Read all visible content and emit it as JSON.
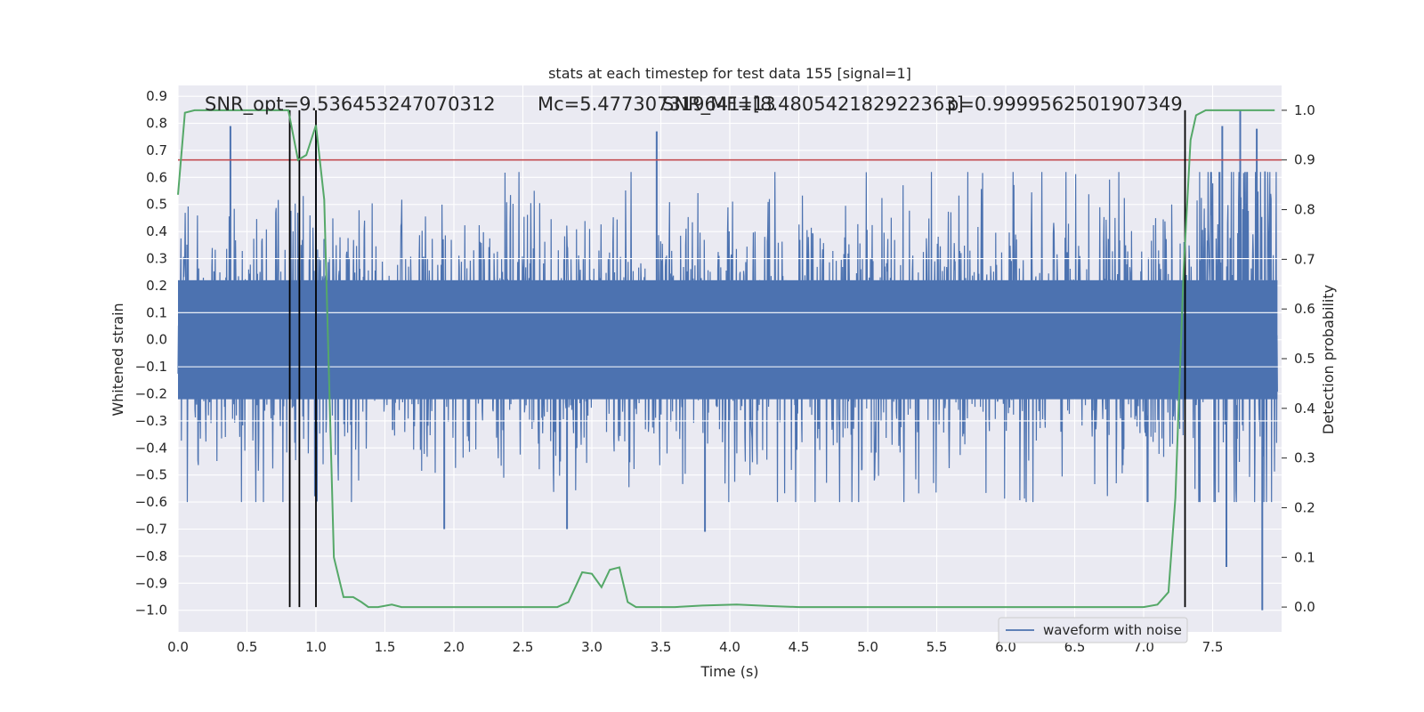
{
  "chart_data": {
    "type": "line",
    "title": "stats at each timestep for test data 155 [signal=1]",
    "xlabel": "Time (s)",
    "ylabel_left": "Whitened strain",
    "ylabel_right": "Detection probability",
    "xlim": [
      0.0,
      8.0
    ],
    "ylim_left": [
      -1.08,
      0.94
    ],
    "ylim_right": [
      -0.05,
      1.05
    ],
    "x_ticks": [
      "0.0",
      "0.5",
      "1.0",
      "1.5",
      "2.0",
      "2.5",
      "3.0",
      "3.5",
      "4.0",
      "4.5",
      "5.0",
      "5.5",
      "6.0",
      "6.5",
      "7.0",
      "7.5"
    ],
    "x_tick_values": [
      0.0,
      0.5,
      1.0,
      1.5,
      2.0,
      2.5,
      3.0,
      3.5,
      4.0,
      4.5,
      5.0,
      5.5,
      6.0,
      6.5,
      7.0,
      7.5
    ],
    "y_left_ticks": [
      "0.9",
      "0.8",
      "0.7",
      "0.6",
      "0.5",
      "0.4",
      "0.3",
      "0.2",
      "0.1",
      "0.0",
      "−0.1",
      "−0.2",
      "−0.3",
      "−0.4",
      "−0.5",
      "−0.6",
      "−0.7",
      "−0.8",
      "−0.9",
      "−1.0"
    ],
    "y_left_tick_values": [
      0.9,
      0.8,
      0.7,
      0.6,
      0.5,
      0.4,
      0.3,
      0.2,
      0.1,
      0.0,
      -0.1,
      -0.2,
      -0.3,
      -0.4,
      -0.5,
      -0.6,
      -0.7,
      -0.8,
      -0.9,
      -1.0
    ],
    "y_right_ticks": [
      "1.0",
      "0.9",
      "0.8",
      "0.7",
      "0.6",
      "0.5",
      "0.4",
      "0.3",
      "0.2",
      "0.1",
      "0.0"
    ],
    "y_right_tick_values": [
      1.0,
      0.9,
      0.8,
      0.7,
      0.6,
      0.5,
      0.4,
      0.3,
      0.2,
      0.1,
      0.0
    ],
    "annotations": [
      {
        "text": "SNR_opt=9.536453247070312"
      },
      {
        "text": "Mᴄ=5.477307319641113"
      },
      {
        "text": "SNR_MF=[8.480542182922363]"
      },
      {
        "text": "p=0.9999562501907349"
      }
    ],
    "threshold": {
      "value": 0.9,
      "color": "#c44e52"
    },
    "vertical_lines": [
      0.81,
      0.88,
      1.0,
      7.3
    ],
    "legend": {
      "position": "lower-right",
      "entries": [
        "waveform with noise"
      ]
    },
    "grid": true,
    "series": [
      {
        "name": "waveform with noise",
        "axis": "left",
        "color": "#4c72b0",
        "typical_amplitude": 0.25,
        "peaks": [
          {
            "x": 0.38,
            "y": 0.79
          },
          {
            "x": 1.0,
            "y": 0.78
          },
          {
            "x": 3.47,
            "y": 0.77
          },
          {
            "x": 3.82,
            "y": -0.71
          },
          {
            "x": 1.93,
            "y": -0.7
          },
          {
            "x": 2.82,
            "y": -0.7
          },
          {
            "x": 7.7,
            "y": 0.85
          },
          {
            "x": 7.57,
            "y": 0.79
          },
          {
            "x": 7.82,
            "y": 0.78
          },
          {
            "x": 7.6,
            "y": -0.84
          },
          {
            "x": 7.86,
            "y": -1.0
          }
        ]
      },
      {
        "axis": "right",
        "color": "#55a868",
        "points": [
          [
            0.0,
            0.83
          ],
          [
            0.05,
            0.995
          ],
          [
            0.12,
            1.0
          ],
          [
            0.4,
            1.0
          ],
          [
            0.8,
            1.0
          ],
          [
            0.87,
            0.9
          ],
          [
            0.93,
            0.91
          ],
          [
            1.0,
            0.97
          ],
          [
            1.06,
            0.82
          ],
          [
            1.13,
            0.1
          ],
          [
            1.2,
            0.02
          ],
          [
            1.27,
            0.02
          ],
          [
            1.33,
            0.01
          ],
          [
            1.38,
            0.0
          ],
          [
            1.45,
            0.0
          ],
          [
            1.55,
            0.005
          ],
          [
            1.62,
            0.0
          ],
          [
            2.0,
            0.0
          ],
          [
            2.5,
            0.0
          ],
          [
            2.75,
            0.0
          ],
          [
            2.83,
            0.01
          ],
          [
            2.93,
            0.07
          ],
          [
            3.0,
            0.067
          ],
          [
            3.07,
            0.04
          ],
          [
            3.13,
            0.075
          ],
          [
            3.2,
            0.08
          ],
          [
            3.26,
            0.01
          ],
          [
            3.32,
            0.0
          ],
          [
            3.6,
            0.0
          ],
          [
            3.8,
            0.003
          ],
          [
            4.05,
            0.005
          ],
          [
            4.3,
            0.002
          ],
          [
            4.5,
            0.0
          ],
          [
            5.0,
            0.0
          ],
          [
            6.0,
            0.0
          ],
          [
            6.5,
            0.0
          ],
          [
            7.0,
            0.0
          ],
          [
            7.1,
            0.005
          ],
          [
            7.18,
            0.03
          ],
          [
            7.23,
            0.22
          ],
          [
            7.29,
            0.68
          ],
          [
            7.34,
            0.94
          ],
          [
            7.38,
            0.99
          ],
          [
            7.45,
            1.0
          ],
          [
            7.95,
            1.0
          ]
        ]
      }
    ]
  }
}
